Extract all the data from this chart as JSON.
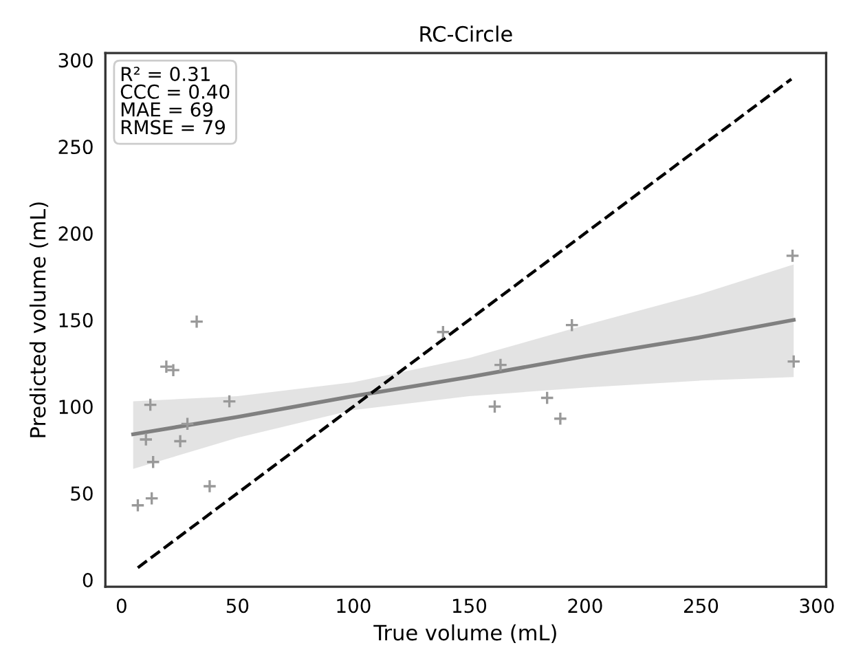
{
  "chart_data": {
    "type": "scatter",
    "title": "RC-Circle",
    "xlabel": "True volume (mL)",
    "ylabel": "Predicted volume (mL)",
    "annotations": [
      "R² = 0.31\nCCC = 0.40\nMAE = 69\nRMSE = 79"
    ],
    "xlim": [
      -7,
      304
    ],
    "ylim": [
      -4,
      304
    ],
    "xticks": [
      0,
      50,
      100,
      150,
      200,
      250,
      300
    ],
    "yticks": [
      0,
      50,
      100,
      150,
      200,
      250,
      300
    ],
    "grid": false,
    "legend": false,
    "series": [
      {
        "color": "#999999",
        "marker": "cross",
        "x": [
          7,
          13,
          10.5,
          13.6,
          12.4,
          19.3,
          22.3,
          32.4,
          25.3,
          28.4,
          46.5,
          38,
          138.7,
          163.5,
          161,
          183.6,
          189.3,
          194.3,
          289.5,
          290
        ],
        "values": [
          43,
          47,
          81,
          68,
          101,
          123,
          121,
          149,
          80,
          90,
          103,
          54,
          143,
          124,
          100,
          105,
          93,
          147,
          187,
          126
        ]
      },
      {
        "type": "line",
        "color": "#808080",
        "line_style": "solid",
        "x": [
          5,
          50,
          100,
          150,
          200,
          250,
          290
        ],
        "values": [
          84,
          94,
          106,
          117,
          129,
          140,
          150
        ],
        "lower": [
          64,
          82,
          98,
          106,
          111,
          115,
          117
        ],
        "upper": [
          103,
          106,
          114,
          128,
          147,
          165,
          182
        ]
      },
      {
        "type": "line",
        "color": "#000000",
        "line_style": "dashed",
        "x": [
          7,
          289
        ],
        "values": [
          7,
          289
        ]
      }
    ]
  }
}
